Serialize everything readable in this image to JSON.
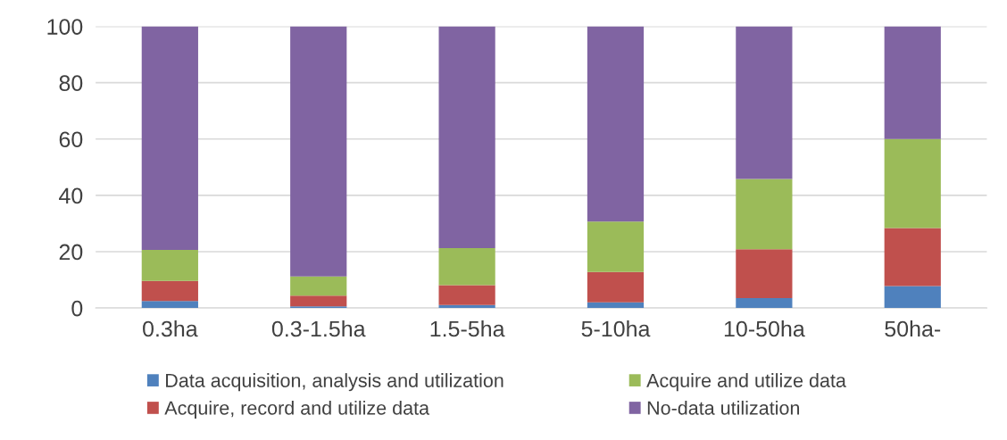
{
  "chart_data": {
    "type": "bar",
    "stacked": true,
    "categories": [
      "0.3ha",
      "0.3-1.5ha",
      "1.5-5ha",
      "5-10ha",
      "10-50ha",
      "50ha-"
    ],
    "series": [
      {
        "name": "Data acquisition, analysis and utilization",
        "color": "#4f81bd",
        "values": [
          2.5,
          0.6,
          1.1,
          2.0,
          3.5,
          7.8
        ]
      },
      {
        "name": "Acquire, record and utilize data",
        "color": "#c0504d",
        "values": [
          7.1,
          3.8,
          7.0,
          10.8,
          17.4,
          20.6
        ]
      },
      {
        "name": "Acquire and utilize data",
        "color": "#9bbb59",
        "values": [
          11.0,
          6.8,
          13.2,
          17.9,
          24.9,
          31.6
        ]
      },
      {
        "name": "No-data utilization",
        "color": "#8064a2",
        "values": [
          79.4,
          88.8,
          78.7,
          69.3,
          54.2,
          40.0
        ]
      }
    ],
    "ylim": [
      0,
      100
    ],
    "yticks": [
      0,
      20,
      40,
      60,
      80,
      100
    ],
    "grid": "y",
    "legend": "bottom"
  }
}
